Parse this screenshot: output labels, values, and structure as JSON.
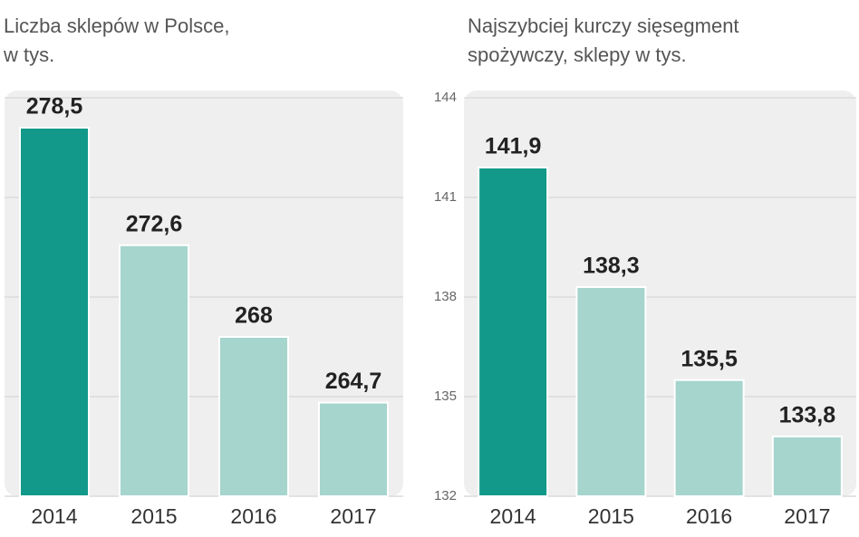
{
  "chart_data": [
    {
      "type": "bar",
      "title": [
        "Liczba sklepów w Polsce,",
        "w tys."
      ],
      "categories": [
        "2014",
        "2015",
        "2016",
        "2017"
      ],
      "values": [
        278.5,
        272.6,
        268,
        264.7
      ],
      "value_labels": [
        "278,5",
        "272,6",
        "268",
        "264,7"
      ],
      "colors": [
        "#12998a",
        "#a5d5cd",
        "#a5d5cd",
        "#a5d5cd"
      ],
      "ylim": [
        260,
        280
      ],
      "yticks": [
        260,
        265,
        270,
        275,
        280
      ],
      "grid": true,
      "tick_labels": false
    },
    {
      "type": "bar",
      "title": [
        "Najszybciej kurczy sięsegment",
        "spożywczy, sklepy w tys."
      ],
      "categories": [
        "2014",
        "2015",
        "2016",
        "2017"
      ],
      "values": [
        141.9,
        138.3,
        135.5,
        133.8
      ],
      "value_labels": [
        "141,9",
        "138,3",
        "135,5",
        "133,8"
      ],
      "colors": [
        "#12998a",
        "#a5d5cd",
        "#a5d5cd",
        "#a5d5cd"
      ],
      "ylim": [
        132,
        144
      ],
      "yticks": [
        132,
        135,
        138,
        141,
        144
      ],
      "grid": true,
      "tick_labels": true
    }
  ]
}
